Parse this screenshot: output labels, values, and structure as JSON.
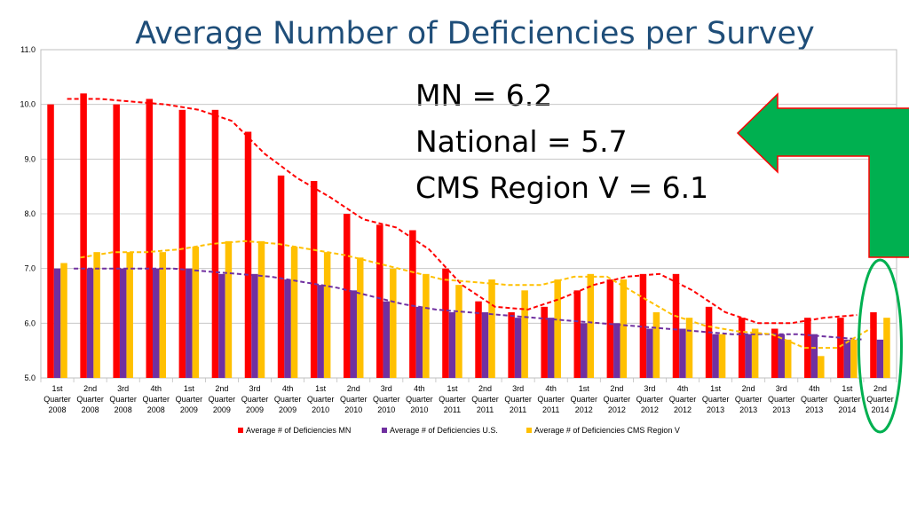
{
  "title": "Average Number of Deficiencies per Survey",
  "stats": [
    "MN = 6.2",
    "National = 5.7",
    "CMS Region V = 6.1"
  ],
  "colors": {
    "mn": "#ff0000",
    "us": "#7030a0",
    "region": "#ffc000",
    "arrow": "#00b050",
    "arrow_outline": "#ff0000",
    "highlight": "#00b050",
    "title": "#1f4e79"
  },
  "chart_data": {
    "type": "bar",
    "title": "Average Number of Deficiencies per Survey",
    "ylim": [
      5.0,
      11.0
    ],
    "yticks": [
      "5.0",
      "6.0",
      "7.0",
      "8.0",
      "9.0",
      "10.0",
      "11.0"
    ],
    "grid": true,
    "legend": "bottom",
    "categories": [
      [
        "1st",
        "Quarter",
        "2008"
      ],
      [
        "2nd",
        "Quarter",
        "2008"
      ],
      [
        "3rd",
        "Quarter",
        "2008"
      ],
      [
        "4th",
        "Quarter",
        "2008"
      ],
      [
        "1st",
        "Quarter",
        "2009"
      ],
      [
        "2nd",
        "Quarter",
        "2009"
      ],
      [
        "3rd",
        "Quarter",
        "2009"
      ],
      [
        "4th",
        "Quarter",
        "2009"
      ],
      [
        "1st",
        "Quarter",
        "2010"
      ],
      [
        "2nd",
        "Quarter",
        "2010"
      ],
      [
        "3rd",
        "Quarter",
        "2010"
      ],
      [
        "4th",
        "Quarter",
        "2010"
      ],
      [
        "1st",
        "Quarter",
        "2011"
      ],
      [
        "2nd",
        "Quarter",
        "2011"
      ],
      [
        "3rd",
        "Quarter",
        "2011"
      ],
      [
        "4th",
        "Quarter",
        "2011"
      ],
      [
        "1st",
        "Quarter",
        "2012"
      ],
      [
        "2nd",
        "Quarter",
        "2012"
      ],
      [
        "3rd",
        "Quarter",
        "2012"
      ],
      [
        "4th",
        "Quarter",
        "2012"
      ],
      [
        "1st",
        "Quarter",
        "2013"
      ],
      [
        "2nd",
        "Quarter",
        "2013"
      ],
      [
        "3rd",
        "Quarter",
        "2013"
      ],
      [
        "4th",
        "Quarter",
        "2013"
      ],
      [
        "1st",
        "Quarter",
        "2014"
      ],
      [
        "2nd",
        "Quarter",
        "2014"
      ]
    ],
    "series": [
      {
        "name": "Average # of Deficiencies MN",
        "color": "#ff0000",
        "values": [
          10.0,
          10.2,
          10.0,
          10.1,
          9.9,
          9.9,
          9.5,
          8.7,
          8.6,
          8.0,
          7.8,
          7.7,
          7.0,
          6.4,
          6.2,
          6.3,
          6.6,
          6.8,
          6.9,
          6.9,
          6.3,
          6.1,
          5.9,
          6.1,
          6.1,
          6.2
        ]
      },
      {
        "name": "Average # of Deficiencies U.S.",
        "color": "#7030a0",
        "values": [
          7.0,
          7.0,
          7.0,
          7.0,
          7.0,
          6.9,
          6.9,
          6.8,
          6.7,
          6.6,
          6.4,
          6.3,
          6.2,
          6.2,
          6.1,
          6.1,
          6.0,
          6.0,
          5.9,
          5.9,
          5.8,
          5.8,
          5.8,
          5.8,
          5.7,
          5.7
        ]
      },
      {
        "name": "Average # of Deficiencies CMS Region V",
        "color": "#ffc000",
        "values": [
          7.1,
          7.3,
          7.3,
          7.3,
          7.4,
          7.5,
          7.5,
          7.4,
          7.3,
          7.2,
          7.0,
          6.9,
          6.7,
          6.8,
          6.6,
          6.8,
          6.9,
          6.8,
          6.2,
          6.1,
          5.8,
          5.9,
          5.7,
          5.4,
          5.7,
          6.1
        ]
      }
    ],
    "trendlines": "moving-average (dashed) for each series"
  }
}
